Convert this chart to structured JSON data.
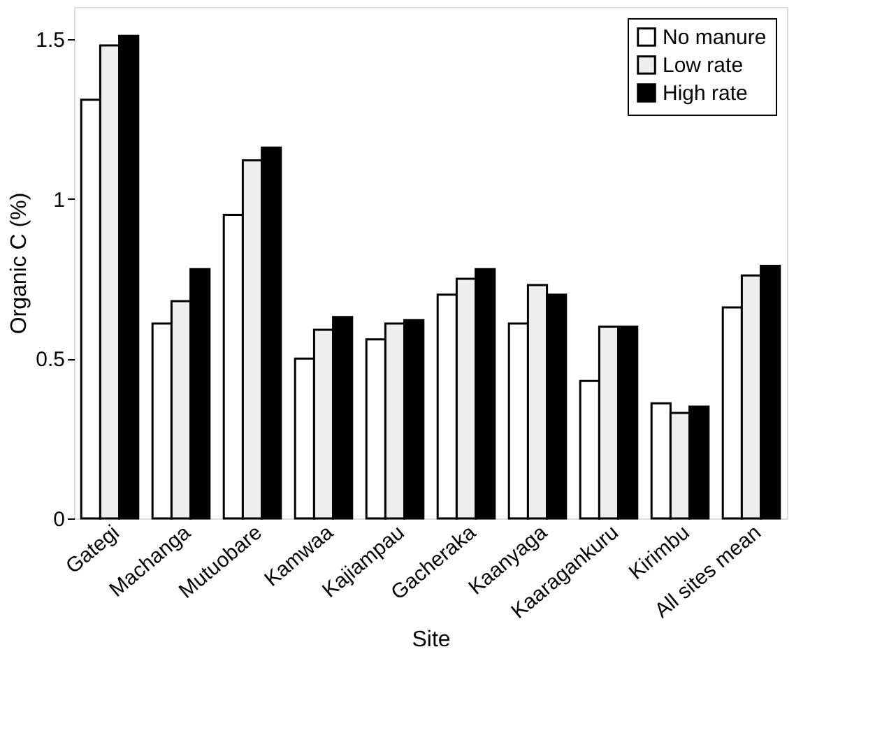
{
  "chart_data": {
    "type": "bar",
    "xlabel": "Site",
    "ylabel": "Organic C (%)",
    "categories": [
      "Gategi",
      "Machanga",
      "Mutuobare",
      "Kamwaa",
      "Kajiampau",
      "Gacheraka",
      "Kaanyaga",
      "Kaaragankuru",
      "Kirimbu",
      "All sites mean"
    ],
    "series": [
      {
        "name": "No manure",
        "color": "#ffffff",
        "values": [
          1.31,
          0.61,
          0.95,
          0.5,
          0.56,
          0.7,
          0.61,
          0.43,
          0.36,
          0.66
        ]
      },
      {
        "name": "Low rate",
        "color": "#eeeeee",
        "values": [
          1.48,
          0.68,
          1.12,
          0.59,
          0.61,
          0.75,
          0.73,
          0.6,
          0.33,
          0.76
        ]
      },
      {
        "name": "High rate",
        "color": "#000000",
        "values": [
          1.51,
          0.78,
          1.16,
          0.63,
          0.62,
          0.78,
          0.7,
          0.6,
          0.35,
          0.79
        ]
      }
    ],
    "ylim": [
      0,
      1.6
    ],
    "yticks": [
      0,
      {
        "value": 0.5,
        "label": "0.5"
      },
      1,
      1.5
    ],
    "legend": "top right",
    "grid": false
  }
}
